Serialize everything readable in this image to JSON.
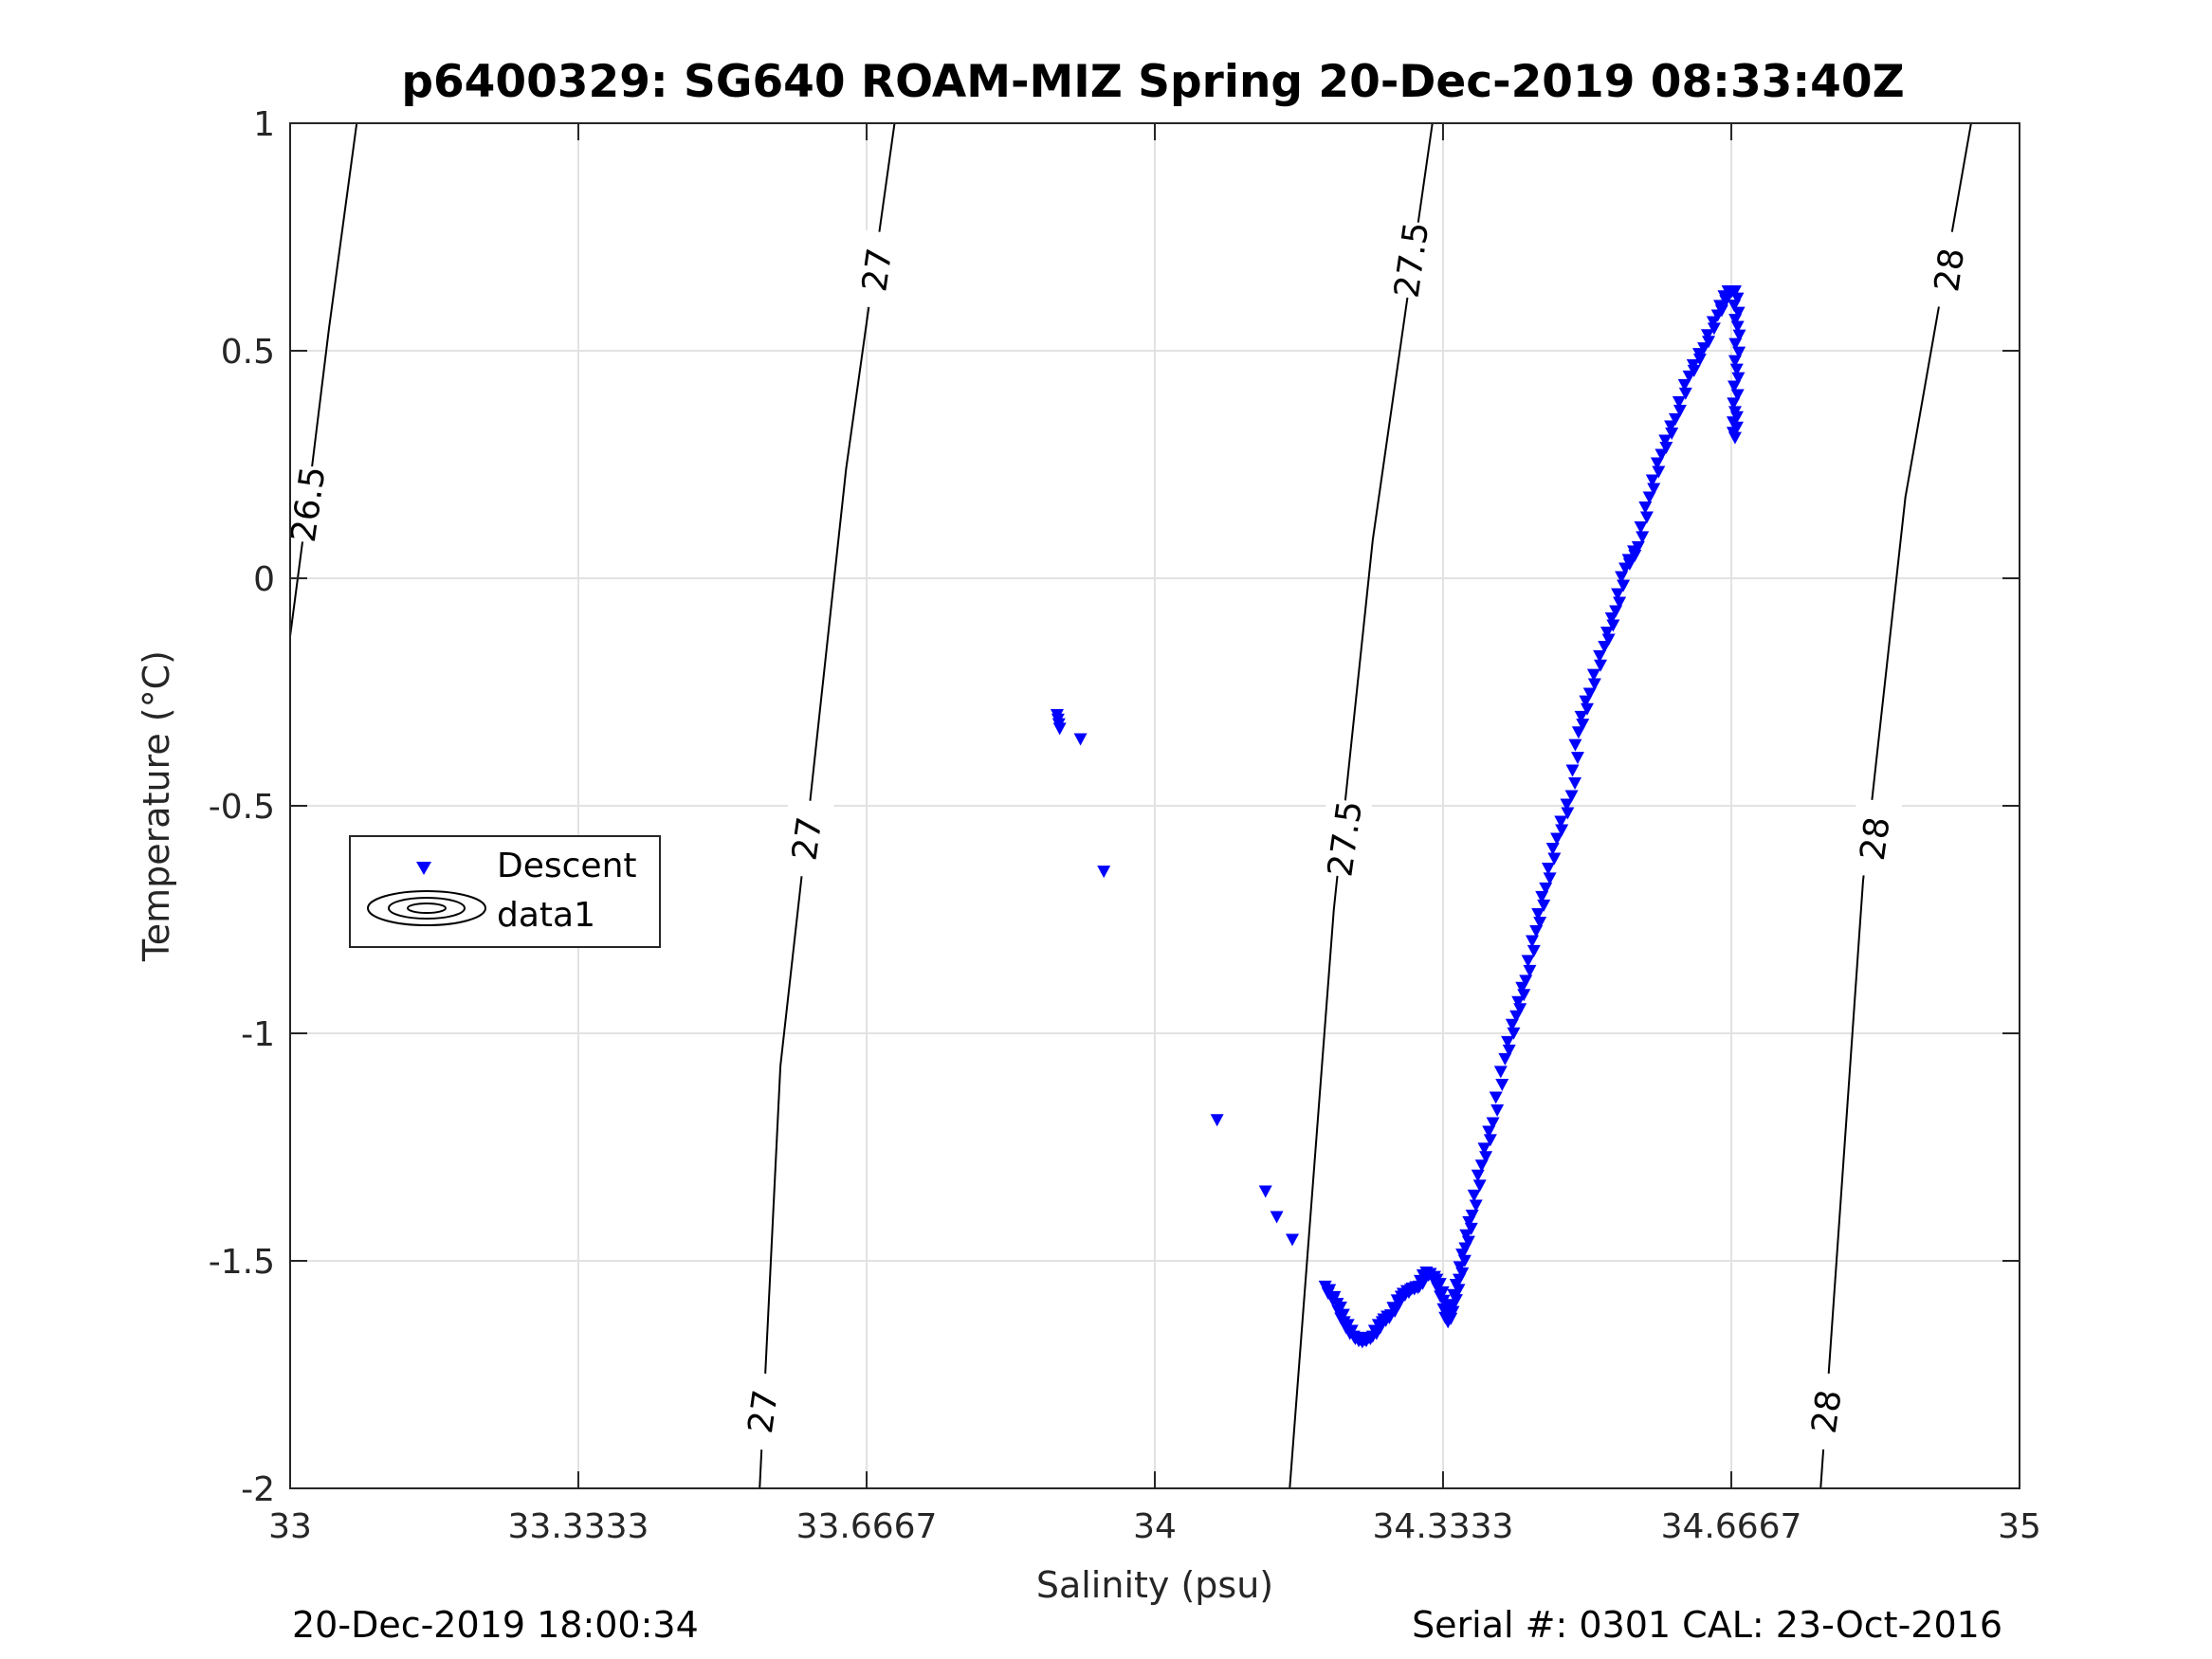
{
  "chart_data": {
    "type": "scatter",
    "title": "p6400329: SG640 ROAM-MIZ Spring 20-Dec-2019 08:33:40Z",
    "xlabel": "Salinity (psu)",
    "ylabel": "Temperature (°C)",
    "xlim": [
      33,
      35
    ],
    "ylim": [
      -2,
      1
    ],
    "grid": true,
    "xticks": [
      33,
      33.3333,
      33.6667,
      34,
      34.3333,
      34.6667,
      35
    ],
    "xtick_labels": [
      "33",
      "33.3333",
      "33.6667",
      "34",
      "34.3333",
      "34.6667",
      "35"
    ],
    "yticks": [
      -2,
      -1.5,
      -1,
      -0.5,
      0,
      0.5,
      1
    ],
    "ytick_labels": [
      "-2",
      "-1.5",
      "-1",
      "-0.5",
      "0",
      "0.5",
      "1"
    ],
    "legend": {
      "placement": "center-left",
      "entries": [
        "Descent",
        "data1"
      ]
    },
    "marker_color": "#0000ff",
    "series": [
      {
        "name": "Descent",
        "marker": "triangle-down",
        "isolated": [
          [
            33.887,
            -0.3
          ],
          [
            33.888,
            -0.31
          ],
          [
            33.889,
            -0.32
          ],
          [
            33.89,
            -0.33
          ],
          [
            33.914,
            -0.353
          ],
          [
            33.941,
            -0.644
          ],
          [
            34.072,
            -1.19
          ],
          [
            34.128,
            -1.347
          ],
          [
            34.141,
            -1.403
          ],
          [
            34.159,
            -1.453
          ]
        ],
        "profile": [
          [
            34.197,
            -1.556
          ],
          [
            34.211,
            -1.594
          ],
          [
            34.219,
            -1.634
          ],
          [
            34.23,
            -1.666
          ],
          [
            34.24,
            -1.678
          ],
          [
            34.252,
            -1.666
          ],
          [
            34.263,
            -1.634
          ],
          [
            34.273,
            -1.619
          ],
          [
            34.285,
            -1.578
          ],
          [
            34.296,
            -1.563
          ],
          [
            34.306,
            -1.556
          ],
          [
            34.314,
            -1.525
          ],
          [
            34.326,
            -1.541
          ],
          [
            34.334,
            -1.587
          ],
          [
            34.339,
            -1.634
          ],
          [
            34.345,
            -1.597
          ],
          [
            34.352,
            -1.541
          ],
          [
            34.359,
            -1.472
          ],
          [
            34.367,
            -1.4
          ],
          [
            34.378,
            -1.29
          ],
          [
            34.391,
            -1.197
          ],
          [
            34.405,
            -1.056
          ],
          [
            34.418,
            -0.962
          ],
          [
            34.429,
            -0.884
          ],
          [
            34.441,
            -0.775
          ],
          [
            34.452,
            -0.681
          ],
          [
            34.465,
            -0.572
          ],
          [
            34.482,
            -0.478
          ],
          [
            34.49,
            -0.338
          ],
          [
            34.503,
            -0.253
          ],
          [
            34.52,
            -0.15
          ],
          [
            34.533,
            -0.072
          ],
          [
            34.544,
            0.022
          ],
          [
            34.559,
            0.069
          ],
          [
            34.572,
            0.178
          ],
          [
            34.586,
            0.272
          ],
          [
            34.602,
            0.35
          ],
          [
            34.618,
            0.444
          ],
          [
            34.635,
            0.506
          ],
          [
            34.651,
            0.578
          ],
          [
            34.663,
            0.631
          ],
          [
            34.671,
            0.631
          ],
          [
            34.674,
            0.553
          ],
          [
            34.673,
            0.459
          ],
          [
            34.671,
            0.366
          ],
          [
            34.671,
            0.309
          ]
        ]
      }
    ],
    "isopycnals": [
      {
        "value": "26.5",
        "points": [
          [
            32.995,
            -0.2
          ],
          [
            33.02,
            0.163
          ],
          [
            33.045,
            0.55
          ],
          [
            33.077,
            1
          ]
        ],
        "labels": [
          [
            33.02,
            0.163
          ]
        ]
      },
      {
        "value": "27",
        "points": [
          [
            33.543,
            -2
          ],
          [
            33.567,
            -1.072
          ],
          [
            33.602,
            -0.478
          ],
          [
            33.643,
            0.241
          ],
          [
            33.699,
            1
          ]
        ],
        "labels": [
          [
            33.678,
            0.678
          ],
          [
            33.597,
            -0.572
          ],
          [
            33.546,
            -1.831
          ]
        ]
      },
      {
        "value": "27.5",
        "points": [
          [
            34.156,
            -2
          ],
          [
            34.207,
            -0.728
          ],
          [
            34.252,
            0.084
          ],
          [
            34.321,
            1
          ]
        ],
        "labels": [
          [
            34.296,
            0.7
          ],
          [
            34.219,
            -0.572
          ]
        ]
      },
      {
        "value": "28",
        "points": [
          [
            34.77,
            -2
          ],
          [
            34.819,
            -0.666
          ],
          [
            34.868,
            0.178
          ],
          [
            34.944,
            1
          ]
        ],
        "labels": [
          [
            34.918,
            0.678
          ],
          [
            34.832,
            -0.572
          ],
          [
            34.776,
            -1.831
          ]
        ]
      }
    ]
  },
  "footer": {
    "timestamp": "20-Dec-2019 18:00:34",
    "serial_cal": "Serial #: 0301  CAL: 23-Oct-2016"
  }
}
